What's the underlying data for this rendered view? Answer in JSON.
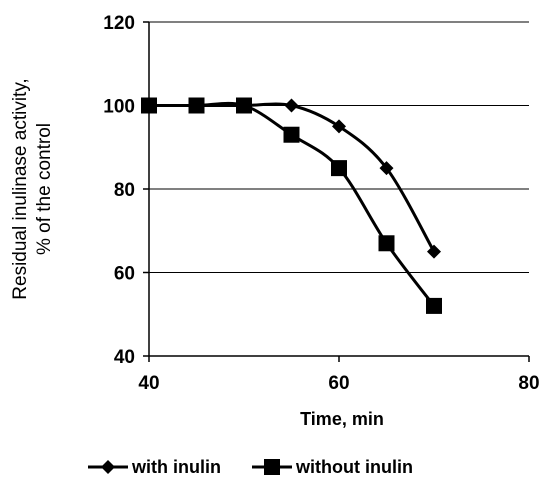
{
  "chart_data": {
    "type": "line",
    "xlabel": "Time, min",
    "ylabel_lines": [
      "Residual inulinase activity,",
      "% of  the control"
    ],
    "xlim": [
      40,
      80
    ],
    "ylim": [
      40,
      120
    ],
    "xticks": [
      40,
      60,
      80
    ],
    "yticks": [
      40,
      60,
      80,
      100,
      120
    ],
    "grid": "horizontal",
    "legend_position": "bottom",
    "series": [
      {
        "name": "with inulin",
        "marker": "diamond",
        "color": "#000000",
        "x": [
          40,
          45,
          50,
          55,
          60,
          65,
          70
        ],
        "y": [
          100,
          100,
          100,
          100,
          95,
          85,
          65
        ]
      },
      {
        "name": "without inulin",
        "marker": "square",
        "color": "#000000",
        "x": [
          40,
          45,
          50,
          55,
          60,
          65,
          70
        ],
        "y": [
          100,
          100,
          100,
          93,
          85,
          67,
          52
        ]
      }
    ]
  }
}
